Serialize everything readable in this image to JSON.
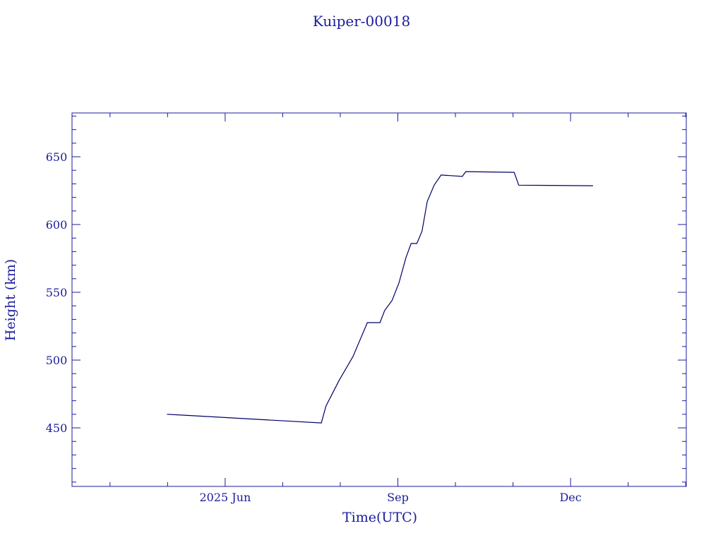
{
  "chart_data": {
    "type": "line",
    "title": "Kuiper-00018",
    "xlabel": "Time(UTC)",
    "ylabel": "Height (km)",
    "x": [
      4.99,
      7.67,
      7.75,
      7.98,
      8.22,
      8.47,
      8.69,
      8.77,
      8.9,
      9.02,
      9.14,
      9.23,
      9.33,
      9.42,
      9.51,
      9.63,
      9.75,
      10.12,
      10.18,
      11.02,
      11.1,
      12.39
    ],
    "series": [
      {
        "name": "Kuiper-00018",
        "color": "#000066",
        "values": [
          460,
          453.6,
          466,
          485,
          502.6,
          527.6,
          527.6,
          536.5,
          544,
          557,
          575.5,
          586,
          586,
          595,
          617,
          629,
          636.5,
          635.5,
          639,
          638.5,
          629,
          628.6
        ]
      }
    ],
    "xlim": [
      3.34,
      14.01
    ],
    "xticks": [
      {
        "value": 6,
        "label": "2025 Jun"
      },
      {
        "value": 9,
        "label": "Sep"
      },
      {
        "value": 12,
        "label": "Dec"
      }
    ],
    "xminor_ticks": [
      4,
      5,
      7,
      8,
      10,
      11,
      13,
      14
    ],
    "ylim": [
      406.8,
      682.3
    ],
    "yticks": [
      450,
      500,
      550,
      600,
      650
    ],
    "yminor_ticks": [
      410,
      420,
      430,
      440,
      460,
      470,
      480,
      490,
      510,
      520,
      530,
      540,
      560,
      570,
      580,
      590,
      610,
      620,
      630,
      640,
      660,
      670,
      680
    ],
    "axis_color": "#1b1b9c",
    "grid": false
  }
}
